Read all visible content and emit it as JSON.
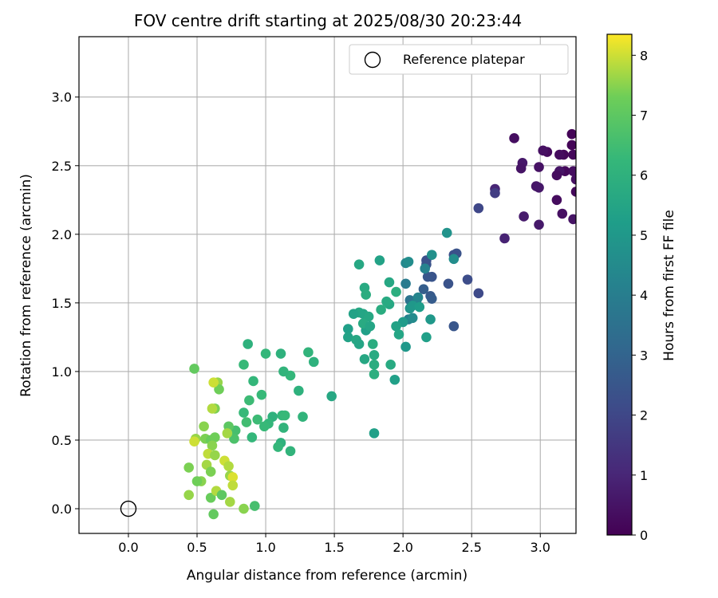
{
  "chart_data": {
    "type": "scatter",
    "title": "FOV centre drift starting at 2025/08/30 20:23:44",
    "xlabel": "Angular distance from reference (arcmin)",
    "ylabel": "Rotation from reference (arcmin)",
    "xlim": [
      -0.36,
      3.26
    ],
    "ylim": [
      -0.18,
      3.44
    ],
    "xticks": [
      "0.0",
      "0.5",
      "1.0",
      "1.5",
      "2.0",
      "2.5",
      "3.0"
    ],
    "xtick_values": [
      0,
      0.5,
      1,
      1.5,
      2,
      2.5,
      3
    ],
    "yticks": [
      "0.0",
      "0.5",
      "1.0",
      "1.5",
      "2.0",
      "2.5",
      "3.0"
    ],
    "ytick_values": [
      0,
      0.5,
      1,
      1.5,
      2,
      2.5,
      3
    ],
    "grid": true,
    "legend": {
      "placement": "top-right",
      "entries": [
        {
          "label": "Reference platepar",
          "marker": "open-circle",
          "x": 0,
          "y": 0
        }
      ]
    },
    "colorbar": {
      "label": "Hours from first FF file",
      "colormap": "viridis",
      "range": [
        0,
        8.35
      ],
      "ticks": [
        "0",
        "1",
        "2",
        "3",
        "4",
        "5",
        "6",
        "7",
        "8"
      ],
      "tick_values": [
        0,
        1,
        2,
        3,
        4,
        5,
        6,
        7,
        8
      ]
    },
    "points": [
      [
        3.23,
        2.73,
        0.1
      ],
      [
        3.23,
        2.65,
        0.1
      ],
      [
        3.24,
        2.58,
        0.2
      ],
      [
        3.17,
        2.58,
        0.15
      ],
      [
        3.14,
        2.58,
        0.3
      ],
      [
        3.05,
        2.6,
        0.25
      ],
      [
        3.02,
        2.61,
        0.4
      ],
      [
        3.18,
        2.46,
        0.2
      ],
      [
        3.24,
        2.46,
        0.35
      ],
      [
        3.14,
        2.46,
        0.5
      ],
      [
        3.12,
        2.43,
        0.3
      ],
      [
        2.99,
        2.49,
        0.45
      ],
      [
        2.87,
        2.52,
        0.6
      ],
      [
        2.86,
        2.48,
        0.5
      ],
      [
        2.81,
        2.7,
        0.35
      ],
      [
        3.26,
        2.4,
        0.4
      ],
      [
        2.97,
        2.35,
        0.55
      ],
      [
        2.99,
        2.34,
        0.6
      ],
      [
        3.26,
        2.31,
        0.2
      ],
      [
        3.12,
        2.25,
        0.3
      ],
      [
        3.16,
        2.15,
        0.4
      ],
      [
        3.24,
        2.11,
        0.5
      ],
      [
        2.88,
        2.13,
        0.7
      ],
      [
        2.99,
        2.07,
        0.65
      ],
      [
        2.74,
        1.97,
        0.9
      ],
      [
        2.67,
        2.33,
        1.0
      ],
      [
        2.67,
        2.3,
        1.7
      ],
      [
        2.55,
        2.19,
        2.0
      ],
      [
        2.55,
        1.57,
        2.1
      ],
      [
        2.47,
        1.67,
        2.2
      ],
      [
        2.39,
        1.86,
        2.4
      ],
      [
        2.37,
        1.85,
        2.3
      ],
      [
        2.37,
        1.33,
        2.5
      ],
      [
        2.33,
        1.64,
        2.4
      ],
      [
        2.21,
        1.69,
        2.45
      ],
      [
        2.18,
        1.69,
        2.5
      ],
      [
        2.17,
        1.81,
        2.3
      ],
      [
        2.17,
        1.78,
        2.4
      ],
      [
        2.2,
        1.55,
        2.6
      ],
      [
        2.21,
        1.53,
        2.7
      ],
      [
        2.15,
        1.6,
        2.8
      ],
      [
        2.32,
        2.01,
        4.8
      ],
      [
        2.37,
        1.82,
        4.6
      ],
      [
        2.21,
        1.85,
        4.7
      ],
      [
        2.16,
        1.75,
        4.2
      ],
      [
        2.02,
        1.79,
        4.4
      ],
      [
        2.04,
        1.8,
        4.6
      ],
      [
        2.02,
        1.64,
        3.9
      ],
      [
        2.05,
        1.52,
        3.6
      ],
      [
        2.1,
        1.52,
        3.8
      ],
      [
        2.11,
        1.54,
        4.3
      ],
      [
        2.05,
        1.46,
        4.9
      ],
      [
        2.07,
        1.48,
        5.0
      ],
      [
        2.12,
        1.47,
        5.2
      ],
      [
        2.04,
        1.38,
        4.1
      ],
      [
        2.07,
        1.39,
        4.5
      ],
      [
        2.2,
        1.38,
        5.0
      ],
      [
        2.0,
        1.36,
        5.1
      ],
      [
        2.02,
        1.18,
        5.0
      ],
      [
        2.17,
        1.25,
        5.3
      ],
      [
        1.95,
        1.33,
        5.4
      ],
      [
        1.97,
        1.27,
        5.5
      ],
      [
        1.94,
        0.94,
        5.3
      ],
      [
        1.9,
        1.49,
        5.6
      ],
      [
        1.88,
        1.51,
        5.7
      ],
      [
        1.84,
        1.45,
        5.8
      ],
      [
        1.9,
        1.65,
        5.6
      ],
      [
        1.95,
        1.58,
        5.9
      ],
      [
        1.83,
        1.81,
        5.4
      ],
      [
        1.68,
        1.78,
        5.6
      ],
      [
        1.72,
        1.61,
        5.7
      ],
      [
        1.73,
        1.56,
        5.8
      ],
      [
        1.68,
        1.43,
        5.6
      ],
      [
        1.71,
        1.42,
        5.5
      ],
      [
        1.64,
        1.42,
        5.4
      ],
      [
        1.75,
        1.4,
        5.6
      ],
      [
        1.73,
        1.3,
        5.3
      ],
      [
        1.71,
        1.35,
        5.7
      ],
      [
        1.76,
        1.33,
        5.5
      ],
      [
        1.6,
        1.31,
        5.3
      ],
      [
        1.6,
        1.25,
        5.4
      ],
      [
        1.66,
        1.23,
        5.6
      ],
      [
        1.68,
        1.2,
        5.5
      ],
      [
        1.78,
        1.2,
        5.8
      ],
      [
        1.72,
        1.09,
        5.6
      ],
      [
        1.79,
        1.12,
        5.7
      ],
      [
        1.79,
        1.05,
        5.8
      ],
      [
        1.79,
        0.98,
        5.9
      ],
      [
        1.91,
        1.05,
        5.7
      ],
      [
        1.79,
        0.55,
        5.3
      ],
      [
        1.48,
        0.82,
        5.6
      ],
      [
        1.31,
        1.14,
        6.1
      ],
      [
        1.35,
        1.07,
        6.0
      ],
      [
        1.18,
        0.97,
        6.2
      ],
      [
        1.13,
        1.0,
        6.1
      ],
      [
        1.11,
        1.13,
        6.0
      ],
      [
        1.0,
        1.13,
        6.2
      ],
      [
        0.87,
        1.2,
        6.0
      ],
      [
        0.84,
        1.05,
        6.3
      ],
      [
        0.91,
        0.93,
        6.2
      ],
      [
        1.24,
        0.86,
        6.0
      ],
      [
        0.97,
        0.83,
        6.3
      ],
      [
        0.88,
        0.79,
        6.4
      ],
      [
        1.27,
        0.67,
        6.1
      ],
      [
        1.12,
        0.68,
        6.2
      ],
      [
        1.14,
        0.68,
        6.3
      ],
      [
        1.05,
        0.67,
        6.0
      ],
      [
        1.02,
        0.62,
        6.2
      ],
      [
        0.99,
        0.6,
        6.3
      ],
      [
        0.94,
        0.65,
        6.4
      ],
      [
        0.86,
        0.63,
        6.5
      ],
      [
        0.84,
        0.7,
        6.3
      ],
      [
        0.9,
        0.52,
        6.2
      ],
      [
        1.13,
        0.59,
        6.1
      ],
      [
        1.11,
        0.48,
        6.0
      ],
      [
        1.09,
        0.45,
        6.2
      ],
      [
        1.18,
        0.42,
        6.1
      ],
      [
        0.78,
        0.57,
        6.6
      ],
      [
        0.77,
        0.51,
        6.7
      ],
      [
        0.92,
        0.02,
        6.6
      ],
      [
        0.48,
        1.02,
        7.1
      ],
      [
        0.65,
        0.92,
        7.6
      ],
      [
        0.66,
        0.87,
        7.3
      ],
      [
        0.62,
        0.92,
        8.0
      ],
      [
        0.63,
        0.73,
        7.4
      ],
      [
        0.61,
        0.73,
        7.8
      ],
      [
        0.55,
        0.6,
        7.5
      ],
      [
        0.73,
        0.6,
        7.0
      ],
      [
        0.72,
        0.55,
        7.7
      ],
      [
        0.49,
        0.51,
        7.6
      ],
      [
        0.48,
        0.49,
        8.0
      ],
      [
        0.56,
        0.51,
        7.4
      ],
      [
        0.6,
        0.5,
        7.2
      ],
      [
        0.63,
        0.52,
        7.3
      ],
      [
        0.61,
        0.46,
        7.5
      ],
      [
        0.58,
        0.4,
        7.9
      ],
      [
        0.63,
        0.39,
        7.6
      ],
      [
        0.57,
        0.32,
        7.7
      ],
      [
        0.6,
        0.27,
        7.4
      ],
      [
        0.7,
        0.35,
        8.0
      ],
      [
        0.73,
        0.31,
        7.8
      ],
      [
        0.74,
        0.24,
        7.6
      ],
      [
        0.76,
        0.23,
        8.1
      ],
      [
        0.76,
        0.17,
        7.9
      ],
      [
        0.53,
        0.2,
        7.5
      ],
      [
        0.5,
        0.2,
        7.3
      ],
      [
        0.44,
        0.3,
        7.4
      ],
      [
        0.44,
        0.1,
        7.6
      ],
      [
        0.6,
        0.08,
        7.2
      ],
      [
        0.64,
        0.13,
        7.8
      ],
      [
        0.68,
        0.1,
        7.0
      ],
      [
        0.74,
        0.05,
        7.7
      ],
      [
        0.84,
        0.0,
        7.5
      ],
      [
        0.62,
        -0.04,
        7.1
      ]
    ]
  }
}
